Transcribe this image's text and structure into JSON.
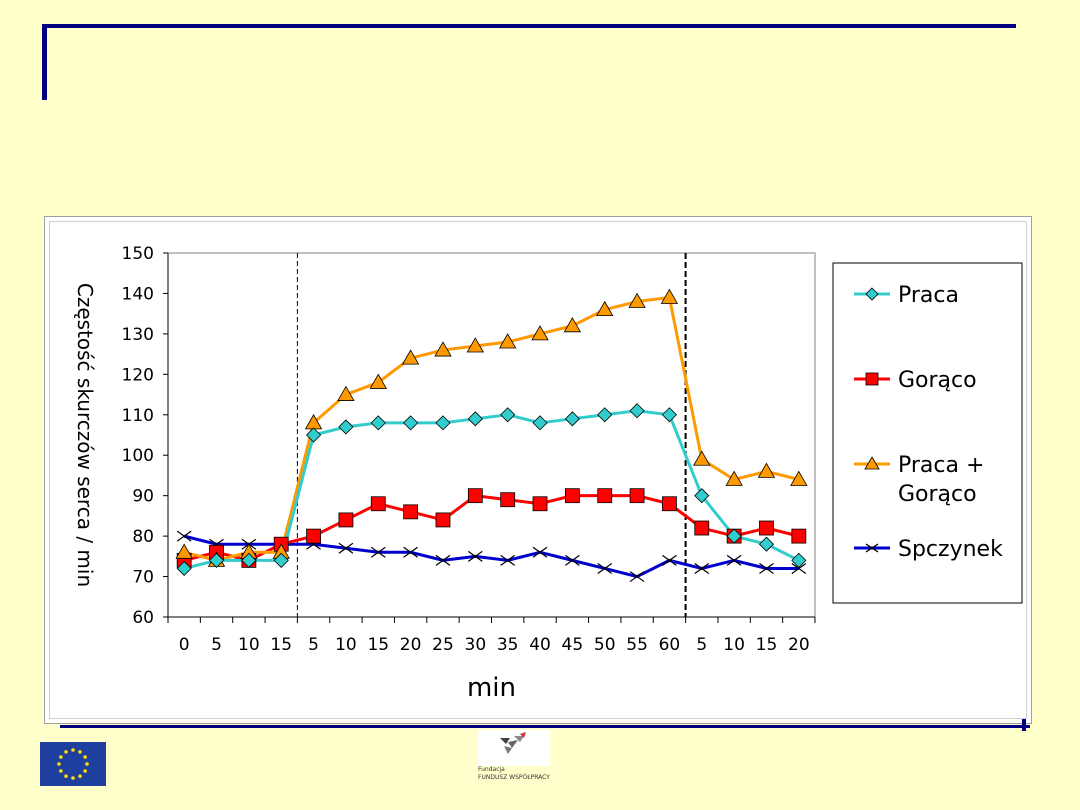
{
  "slide": {
    "logo_text_line1": "Fundacja",
    "logo_text_line2": "FUNDUSZ WSPÓŁPRACY"
  },
  "colors": {
    "background": "#FFFFCC",
    "accent_rule": "#000080",
    "praca": "#33CCCC",
    "goraco": "#FF0000",
    "praca_goraco": "#FF9900",
    "spoczynek": "#0000CC"
  },
  "chart_data": {
    "type": "line",
    "title": "",
    "xlabel": "min",
    "ylabel": "Częstość skurczów serca / min",
    "ylim": [
      60,
      150
    ],
    "yticks": [
      60,
      70,
      80,
      90,
      100,
      110,
      120,
      130,
      140,
      150
    ],
    "grid": false,
    "legend_position": "right",
    "categories": [
      "0",
      "5",
      "10",
      "15",
      "5",
      "10",
      "15",
      "20",
      "25",
      "30",
      "35",
      "40",
      "45",
      "50",
      "55",
      "60",
      "5",
      "10",
      "15",
      "20"
    ],
    "phase_dividers_after_index": [
      3,
      15
    ],
    "series": [
      {
        "name": "Praca",
        "marker": "diamond",
        "color": "#33CCCC",
        "values": [
          72,
          74,
          74,
          74,
          105,
          107,
          108,
          108,
          108,
          109,
          110,
          108,
          109,
          110,
          111,
          110,
          90,
          80,
          78,
          74
        ]
      },
      {
        "name": "Gorąco",
        "marker": "square",
        "color": "#FF0000",
        "values": [
          74,
          76,
          74,
          78,
          80,
          84,
          88,
          86,
          84,
          90,
          89,
          88,
          90,
          90,
          90,
          88,
          82,
          80,
          82,
          80
        ]
      },
      {
        "name": "Praca + Gorąco",
        "legend_lines": [
          "Praca +",
          "Gorąco"
        ],
        "marker": "triangle",
        "color": "#FF9900",
        "values": [
          76,
          74,
          76,
          76,
          108,
          115,
          118,
          124,
          126,
          127,
          128,
          130,
          132,
          136,
          138,
          139,
          99,
          94,
          96,
          94
        ]
      },
      {
        "name": "Spczynek",
        "marker": "x",
        "color": "#0000CC",
        "values": [
          80,
          78,
          78,
          78,
          78,
          77,
          76,
          76,
          74,
          75,
          74,
          76,
          74,
          72,
          70,
          74,
          72,
          74,
          72,
          72
        ]
      }
    ]
  }
}
